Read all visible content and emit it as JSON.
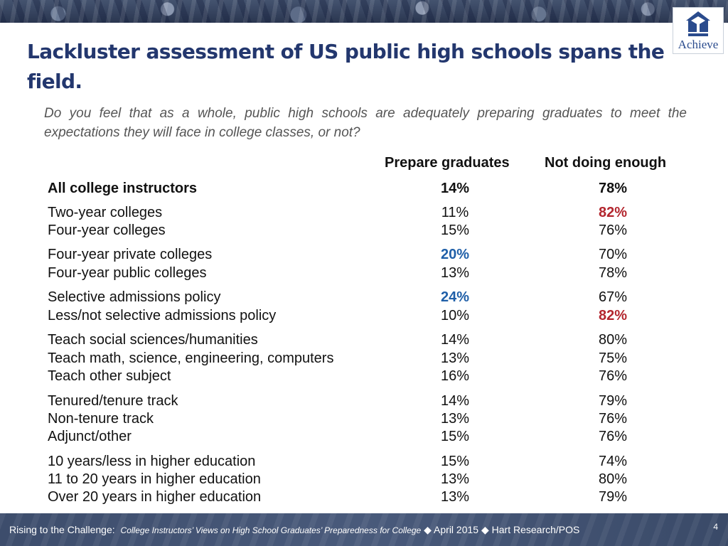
{
  "logo": {
    "text": "Achieve"
  },
  "title": "Lackluster assessment of US public high schools spans the field.",
  "question": "Do you feel that as a whole, public high schools are adequately preparing graduates to meet the expectations they will face in college classes, or not?",
  "columns": {
    "prepare": "Prepare graduates",
    "not_enough": "Not doing enough"
  },
  "rows": [
    {
      "label": "All college instructors",
      "prepare": "14%",
      "not_enough": "78%"
    },
    {
      "label": "Two-year colleges",
      "prepare": "11%",
      "not_enough": "82%"
    },
    {
      "label": "Four-year colleges",
      "prepare": "15%",
      "not_enough": "76%"
    },
    {
      "label": "Four-year private colleges",
      "prepare": "20%",
      "not_enough": "70%"
    },
    {
      "label": "Four-year public colleges",
      "prepare": "13%",
      "not_enough": "78%"
    },
    {
      "label": "Selective admissions policy",
      "prepare": "24%",
      "not_enough": "67%"
    },
    {
      "label": "Less/not selective admissions policy",
      "prepare": "10%",
      "not_enough": "82%"
    },
    {
      "label": "Teach social sciences/humanities",
      "prepare": "14%",
      "not_enough": "80%"
    },
    {
      "label": "Teach math, science, engineering, computers",
      "prepare": "13%",
      "not_enough": "75%"
    },
    {
      "label": "Teach other subject",
      "prepare": "16%",
      "not_enough": "76%"
    },
    {
      "label": "Tenured/tenure track",
      "prepare": "14%",
      "not_enough": "79%"
    },
    {
      "label": "Non-tenure track",
      "prepare": "13%",
      "not_enough": "76%"
    },
    {
      "label": "Adjunct/other",
      "prepare": "15%",
      "not_enough": "76%"
    },
    {
      "label": "10 years/less in higher education",
      "prepare": "15%",
      "not_enough": "74%"
    },
    {
      "label": "11 to 20 years in higher education",
      "prepare": "13%",
      "not_enough": "80%"
    },
    {
      "label": "Over 20 years in higher education",
      "prepare": "13%",
      "not_enough": "79%"
    }
  ],
  "highlight_colors": {
    "high_prepare": "#1f5fa8",
    "high_not_enough": "#b3262e"
  },
  "footer": {
    "lead": "Rising to the Challenge:",
    "subtitle": "College Instructors’ Views on High School Graduates’ Preparedness for College",
    "date": "April 2015",
    "org": "Hart Research/POS",
    "separator": "◆",
    "page_number": "4"
  }
}
